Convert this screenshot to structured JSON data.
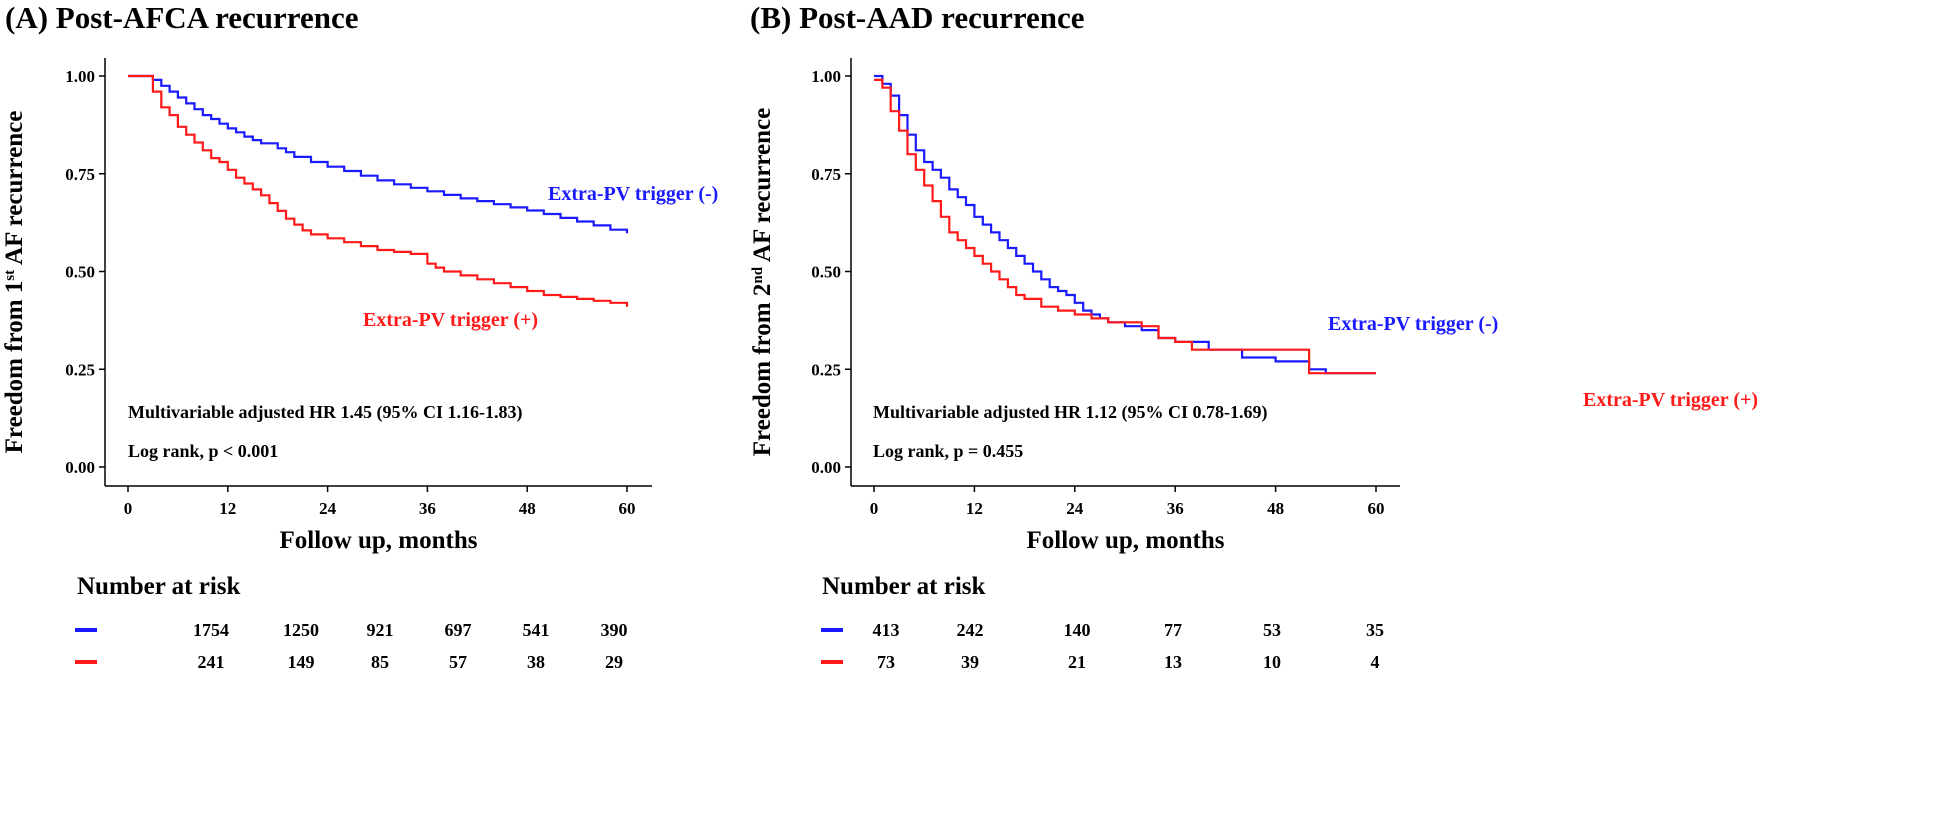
{
  "colors": {
    "neg": "#1a1aff",
    "pos": "#ff1a1a",
    "axis": "#000000"
  },
  "chart_data": [
    {
      "type": "line",
      "step": true,
      "title": "(A) Post-AFCA recurrence",
      "xlabel": "Follow up, months",
      "ylabel_main": "Freedom from 1",
      "ylabel_sup": "st",
      "ylabel_rest": " AF recurrence",
      "xlim": [
        0,
        60
      ],
      "ylim": [
        0,
        1
      ],
      "xticks": [
        "0",
        "12",
        "24",
        "36",
        "48",
        "60"
      ],
      "yticks": [
        "0.00",
        "0.25",
        "0.50",
        "0.75",
        "1.00"
      ],
      "annotations": [
        "Multivariable adjusted HR 1.45 (95% CI 1.16-1.83)",
        "Log rank, p < 0.001"
      ],
      "series": [
        {
          "name": "Extra-PV trigger (-)",
          "color": "#1a1aff",
          "x": [
            0,
            3,
            4,
            5,
            6,
            7,
            8,
            9,
            10,
            11,
            12,
            13,
            14,
            15,
            16,
            18,
            19,
            20,
            22,
            24,
            26,
            28,
            30,
            32,
            34,
            36,
            38,
            40,
            42,
            44,
            46,
            48,
            50,
            52,
            54,
            56,
            58,
            60
          ],
          "values": [
            1.0,
            0.99,
            0.975,
            0.96,
            0.945,
            0.93,
            0.915,
            0.9,
            0.89,
            0.878,
            0.866,
            0.856,
            0.845,
            0.836,
            0.828,
            0.815,
            0.805,
            0.793,
            0.78,
            0.768,
            0.757,
            0.745,
            0.733,
            0.723,
            0.714,
            0.705,
            0.696,
            0.687,
            0.68,
            0.672,
            0.664,
            0.656,
            0.647,
            0.637,
            0.628,
            0.618,
            0.607,
            0.598
          ]
        },
        {
          "name": "Extra-PV trigger (+)",
          "color": "#ff1a1a",
          "x": [
            0,
            3,
            4,
            5,
            6,
            7,
            8,
            9,
            10,
            11,
            12,
            13,
            14,
            15,
            16,
            17,
            18,
            19,
            20,
            21,
            22,
            24,
            26,
            28,
            30,
            32,
            34,
            36,
            37,
            38,
            40,
            42,
            44,
            46,
            48,
            50,
            52,
            54,
            56,
            58,
            60
          ],
          "values": [
            1.0,
            0.96,
            0.92,
            0.9,
            0.87,
            0.85,
            0.83,
            0.81,
            0.79,
            0.78,
            0.76,
            0.74,
            0.725,
            0.71,
            0.695,
            0.675,
            0.655,
            0.635,
            0.62,
            0.605,
            0.595,
            0.585,
            0.575,
            0.565,
            0.555,
            0.55,
            0.545,
            0.52,
            0.51,
            0.5,
            0.49,
            0.48,
            0.47,
            0.46,
            0.45,
            0.44,
            0.435,
            0.43,
            0.425,
            0.42,
            0.41
          ]
        }
      ],
      "legend_labels": [
        {
          "text": "Extra-PV trigger (-)",
          "color": "#1a1aff"
        },
        {
          "text": "Extra-PV trigger (+)",
          "color": "#ff1a1a"
        }
      ],
      "risk_title": "Number at risk",
      "risk_rows": [
        {
          "color": "#1a1aff",
          "values": [
            "1754",
            "1250",
            "921",
            "697",
            "541",
            "390"
          ]
        },
        {
          "color": "#ff1a1a",
          "values": [
            "241",
            "149",
            "85",
            "57",
            "38",
            "29"
          ]
        }
      ]
    },
    {
      "type": "line",
      "step": true,
      "title": "(B) Post-AAD recurrence",
      "xlabel": "Follow up, months",
      "ylabel_main": "Freedom from 2",
      "ylabel_sup": "nd",
      "ylabel_rest": "  AF recurrence",
      "xlim": [
        0,
        60
      ],
      "ylim": [
        0,
        1
      ],
      "xticks": [
        "0",
        "12",
        "24",
        "36",
        "48",
        "60"
      ],
      "yticks": [
        "0.00",
        "0.25",
        "0.50",
        "0.75",
        "1.00"
      ],
      "annotations": [
        "Multivariable adjusted HR 1.12 (95% CI 0.78-1.69)",
        "Log rank, p = 0.455"
      ],
      "series": [
        {
          "name": "Extra-PV trigger (-)",
          "color": "#1a1aff",
          "x": [
            0,
            1,
            2,
            3,
            4,
            5,
            6,
            7,
            8,
            9,
            10,
            11,
            12,
            13,
            14,
            15,
            16,
            17,
            18,
            19,
            20,
            21,
            22,
            23,
            24,
            25,
            26,
            27,
            28,
            30,
            32,
            34,
            36,
            40,
            44,
            48,
            52,
            54,
            60
          ],
          "values": [
            1.0,
            0.98,
            0.95,
            0.9,
            0.85,
            0.81,
            0.78,
            0.76,
            0.74,
            0.71,
            0.69,
            0.67,
            0.64,
            0.62,
            0.6,
            0.58,
            0.56,
            0.54,
            0.52,
            0.5,
            0.48,
            0.46,
            0.45,
            0.44,
            0.42,
            0.4,
            0.39,
            0.38,
            0.37,
            0.36,
            0.35,
            0.33,
            0.32,
            0.3,
            0.28,
            0.27,
            0.25,
            0.24,
            0.24
          ]
        },
        {
          "name": "Extra-PV trigger (+)",
          "color": "#ff1a1a",
          "x": [
            0,
            1,
            2,
            3,
            4,
            5,
            6,
            7,
            8,
            9,
            10,
            11,
            12,
            13,
            14,
            15,
            16,
            17,
            18,
            20,
            22,
            24,
            26,
            28,
            30,
            32,
            34,
            36,
            38,
            44,
            52,
            60
          ],
          "values": [
            0.99,
            0.97,
            0.91,
            0.86,
            0.8,
            0.76,
            0.72,
            0.68,
            0.64,
            0.6,
            0.58,
            0.56,
            0.54,
            0.52,
            0.5,
            0.48,
            0.46,
            0.44,
            0.43,
            0.41,
            0.4,
            0.39,
            0.38,
            0.37,
            0.37,
            0.36,
            0.33,
            0.32,
            0.3,
            0.3,
            0.24,
            0.24
          ]
        }
      ],
      "legend_labels": [
        {
          "text": "Extra-PV trigger (-)",
          "color": "#1a1aff"
        },
        {
          "text": "Extra-PV trigger (+)",
          "color": "#ff1a1a"
        }
      ],
      "risk_title": "Number at risk",
      "risk_rows": [
        {
          "color": "#1a1aff",
          "values": [
            "413",
            "242",
            "140",
            "77",
            "53",
            "35"
          ]
        },
        {
          "color": "#ff1a1a",
          "values": [
            "73",
            "39",
            "21",
            "13",
            "10",
            "4"
          ]
        }
      ]
    }
  ]
}
